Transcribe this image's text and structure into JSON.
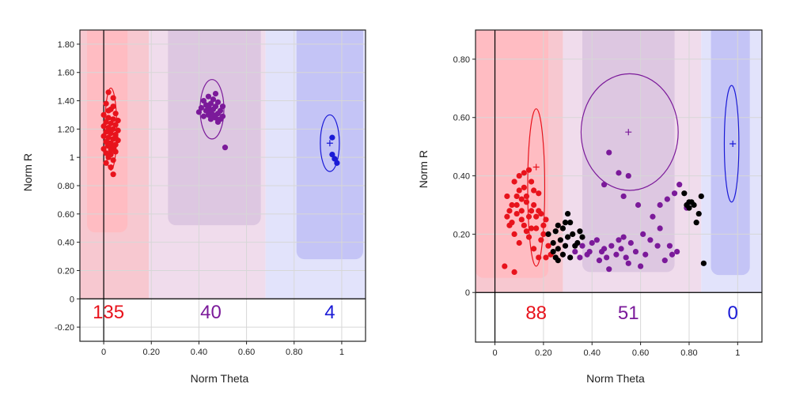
{
  "chart_data": [
    {
      "type": "scatter",
      "xlabel": "Norm Theta",
      "ylabel": "Norm R",
      "xlim": [
        -0.1,
        1.1
      ],
      "ylim": [
        -0.3,
        1.9
      ],
      "x_ticks": [
        0,
        0.2,
        0.4,
        0.6,
        0.8,
        1
      ],
      "x_tick_labels": [
        "0",
        "0.20",
        "0.40",
        "0.60",
        "0.80",
        "1"
      ],
      "y_ticks": [
        -0.2,
        0,
        0.2,
        0.4,
        0.6,
        0.8,
        1,
        1.2,
        1.4,
        1.6,
        1.8
      ],
      "y_tick_labels": [
        "-0.20",
        "0",
        "0.20",
        "0.40",
        "0.60",
        "0.80",
        "1",
        "1.20",
        "1.40",
        "1.60",
        "1.80"
      ],
      "grid": true,
      "count_band_y": [
        -0.3,
        0
      ],
      "regions": [
        {
          "name": "red",
          "color": "#f7c8d0",
          "inner_color": "#ffbcc2",
          "range_x": [
            -0.1,
            0.19
          ],
          "inner": {
            "x": [
              -0.07,
              0.1
            ],
            "y": [
              0.47,
              1.9
            ]
          }
        },
        {
          "name": "purple",
          "color": "#f0dcec",
          "inner_color": "#ddc7e1",
          "range_x": [
            0.19,
            0.68
          ],
          "inner": {
            "x": [
              0.27,
              0.66
            ],
            "y": [
              0.52,
              1.9
            ]
          }
        },
        {
          "name": "blue",
          "color": "#e2e3fb",
          "inner_color": "#c4c4f6",
          "range_x": [
            0.68,
            1.1
          ],
          "inner": {
            "x": [
              0.81,
              1.09
            ],
            "y": [
              0.28,
              1.9
            ]
          }
        }
      ],
      "series": [
        {
          "name": "red",
          "color": "#e8131c",
          "count": "135",
          "centroid": [
            0.02,
            1.18
          ],
          "ellipse": {
            "cx": 0.03,
            "cy": 1.2,
            "rx": 0.025,
            "ry": 0.29
          },
          "points": [
            [
              0.02,
              1.46
            ],
            [
              0.04,
              1.42
            ],
            [
              0.01,
              1.38
            ],
            [
              0.03,
              1.34
            ],
            [
              0.05,
              1.31
            ],
            [
              0.0,
              1.3
            ],
            [
              0.02,
              1.28
            ],
            [
              0.04,
              1.27
            ],
            [
              0.06,
              1.26
            ],
            [
              0.01,
              1.25
            ],
            [
              0.03,
              1.24
            ],
            [
              0.05,
              1.23
            ],
            [
              0.0,
              1.22
            ],
            [
              0.02,
              1.21
            ],
            [
              0.04,
              1.2
            ],
            [
              0.06,
              1.19
            ],
            [
              0.01,
              1.18
            ],
            [
              0.03,
              1.17
            ],
            [
              0.05,
              1.16
            ],
            [
              0.0,
              1.15
            ],
            [
              0.02,
              1.14
            ],
            [
              0.04,
              1.13
            ],
            [
              0.06,
              1.12
            ],
            [
              0.01,
              1.11
            ],
            [
              0.03,
              1.1
            ],
            [
              0.05,
              1.09
            ],
            [
              0.02,
              1.08
            ],
            [
              0.04,
              1.07
            ],
            [
              0.0,
              1.06
            ],
            [
              0.03,
              1.05
            ],
            [
              0.05,
              1.04
            ],
            [
              0.01,
              1.03
            ],
            [
              0.03,
              1.02
            ],
            [
              0.02,
              1.0
            ],
            [
              0.04,
              0.98
            ],
            [
              0.01,
              0.96
            ],
            [
              0.03,
              0.93
            ],
            [
              0.04,
              0.88
            ],
            [
              0.02,
              1.33
            ],
            [
              0.04,
              1.36
            ],
            [
              0.03,
              1.19
            ],
            [
              0.05,
              1.14
            ],
            [
              0.02,
              1.1
            ]
          ]
        },
        {
          "name": "purple",
          "color": "#7b1a9a",
          "count": "40",
          "centroid": [
            0.45,
            1.34
          ],
          "ellipse": {
            "cx": 0.455,
            "cy": 1.34,
            "rx": 0.05,
            "ry": 0.21
          },
          "points": [
            [
              0.47,
              1.45
            ],
            [
              0.44,
              1.43
            ],
            [
              0.46,
              1.41
            ],
            [
              0.42,
              1.4
            ],
            [
              0.48,
              1.39
            ],
            [
              0.45,
              1.38
            ],
            [
              0.43,
              1.37
            ],
            [
              0.5,
              1.36
            ],
            [
              0.47,
              1.36
            ],
            [
              0.41,
              1.35
            ],
            [
              0.44,
              1.35
            ],
            [
              0.46,
              1.34
            ],
            [
              0.49,
              1.33
            ],
            [
              0.43,
              1.33
            ],
            [
              0.45,
              1.32
            ],
            [
              0.4,
              1.32
            ],
            [
              0.48,
              1.31
            ],
            [
              0.44,
              1.3
            ],
            [
              0.46,
              1.3
            ],
            [
              0.42,
              1.29
            ],
            [
              0.5,
              1.29
            ],
            [
              0.47,
              1.28
            ],
            [
              0.45,
              1.27
            ],
            [
              0.49,
              1.27
            ],
            [
              0.48,
              1.25
            ],
            [
              0.51,
              1.07
            ]
          ]
        },
        {
          "name": "blue",
          "color": "#1a1ad6",
          "count": "4",
          "centroid": [
            0.95,
            1.1
          ],
          "ellipse": {
            "cx": 0.95,
            "cy": 1.1,
            "rx": 0.04,
            "ry": 0.2
          },
          "points": [
            [
              0.96,
              1.14
            ],
            [
              0.96,
              1.02
            ],
            [
              0.97,
              0.99
            ],
            [
              0.98,
              0.96
            ]
          ]
        }
      ]
    },
    {
      "type": "scatter",
      "xlabel": "Norm Theta",
      "ylabel": "Norm R",
      "xlim": [
        -0.08,
        1.1
      ],
      "ylim": [
        -0.17,
        0.9
      ],
      "x_ticks": [
        0,
        0.2,
        0.4,
        0.6,
        0.8,
        1
      ],
      "x_tick_labels": [
        "0",
        "0.20",
        "0.40",
        "0.60",
        "0.80",
        "1"
      ],
      "y_ticks": [
        0,
        0.2,
        0.4,
        0.6,
        0.8
      ],
      "y_tick_labels": [
        "0",
        "0.20",
        "0.40",
        "0.60",
        "0.80"
      ],
      "grid": true,
      "count_band_y": [
        -0.17,
        0
      ],
      "regions": [
        {
          "name": "red",
          "color": "#f7c8d0",
          "inner_color": "#ffbcc2",
          "range_x": [
            -0.08,
            0.28
          ],
          "inner": {
            "x": [
              -0.08,
              0.22
            ],
            "y": [
              0.05,
              0.9
            ]
          }
        },
        {
          "name": "purple",
          "color": "#f0dcec",
          "inner_color": "#ddc7e1",
          "range_x": [
            0.28,
            0.85
          ],
          "inner": {
            "x": [
              0.36,
              0.74
            ],
            "y": [
              0.07,
              0.9
            ]
          }
        },
        {
          "name": "blue",
          "color": "#e2e3fb",
          "inner_color": "#c4c4f6",
          "range_x": [
            0.85,
            1.1
          ],
          "inner": {
            "x": [
              0.89,
              1.05
            ],
            "y": [
              0.06,
              0.9
            ]
          }
        }
      ],
      "series": [
        {
          "name": "red",
          "color": "#e8131c",
          "count": "88",
          "centroid": [
            0.17,
            0.43
          ],
          "ellipse": {
            "cx": 0.17,
            "cy": 0.36,
            "rx": 0.035,
            "ry": 0.27
          },
          "points": [
            [
              0.05,
              0.33
            ],
            [
              0.06,
              0.28
            ],
            [
              0.07,
              0.24
            ],
            [
              0.08,
              0.38
            ],
            [
              0.09,
              0.3
            ],
            [
              0.1,
              0.35
            ],
            [
              0.11,
              0.28
            ],
            [
              0.12,
              0.41
            ],
            [
              0.13,
              0.33
            ],
            [
              0.14,
              0.26
            ],
            [
              0.15,
              0.38
            ],
            [
              0.16,
              0.3
            ],
            [
              0.17,
              0.22
            ],
            [
              0.18,
              0.34
            ],
            [
              0.19,
              0.27
            ],
            [
              0.2,
              0.2
            ],
            [
              0.21,
              0.25
            ],
            [
              0.22,
              0.16
            ],
            [
              0.23,
              0.13
            ],
            [
              0.08,
              0.2
            ],
            [
              0.1,
              0.17
            ],
            [
              0.12,
              0.23
            ],
            [
              0.14,
              0.19
            ],
            [
              0.16,
              0.15
            ],
            [
              0.18,
              0.12
            ],
            [
              0.13,
              0.31
            ],
            [
              0.07,
              0.3
            ],
            [
              0.09,
              0.27
            ],
            [
              0.11,
              0.32
            ],
            [
              0.15,
              0.28
            ],
            [
              0.17,
              0.26
            ],
            [
              0.19,
              0.18
            ],
            [
              0.04,
              0.09
            ],
            [
              0.08,
              0.07
            ],
            [
              0.13,
              0.21
            ],
            [
              0.12,
              0.36
            ],
            [
              0.06,
              0.23
            ],
            [
              0.16,
              0.35
            ],
            [
              0.14,
              0.42
            ],
            [
              0.18,
              0.28
            ],
            [
              0.2,
              0.23
            ],
            [
              0.11,
              0.25
            ],
            [
              0.15,
              0.22
            ],
            [
              0.05,
              0.26
            ],
            [
              0.09,
              0.33
            ],
            [
              0.21,
              0.12
            ],
            [
              0.1,
              0.4
            ]
          ]
        },
        {
          "name": "purple",
          "color": "#7b1a9a",
          "count": "51",
          "centroid": [
            0.55,
            0.55
          ],
          "ellipse": {
            "cx": 0.555,
            "cy": 0.55,
            "rx": 0.2,
            "ry": 0.2
          },
          "points": [
            [
              0.47,
              0.48
            ],
            [
              0.51,
              0.41
            ],
            [
              0.55,
              0.4
            ],
            [
              0.45,
              0.37
            ],
            [
              0.53,
              0.33
            ],
            [
              0.59,
              0.3
            ],
            [
              0.65,
              0.26
            ],
            [
              0.68,
              0.3
            ],
            [
              0.71,
              0.32
            ],
            [
              0.74,
              0.34
            ],
            [
              0.76,
              0.37
            ],
            [
              0.79,
              0.29
            ],
            [
              0.61,
              0.2
            ],
            [
              0.64,
              0.18
            ],
            [
              0.68,
              0.22
            ],
            [
              0.72,
              0.16
            ],
            [
              0.75,
              0.14
            ],
            [
              0.33,
              0.14
            ],
            [
              0.36,
              0.16
            ],
            [
              0.39,
              0.14
            ],
            [
              0.42,
              0.18
            ],
            [
              0.44,
              0.14
            ],
            [
              0.46,
              0.12
            ],
            [
              0.48,
              0.16
            ],
            [
              0.5,
              0.13
            ],
            [
              0.52,
              0.15
            ],
            [
              0.54,
              0.12
            ],
            [
              0.56,
              0.17
            ],
            [
              0.58,
              0.14
            ],
            [
              0.4,
              0.17
            ],
            [
              0.43,
              0.11
            ],
            [
              0.47,
              0.08
            ],
            [
              0.51,
              0.18
            ],
            [
              0.55,
              0.1
            ],
            [
              0.6,
              0.09
            ],
            [
              0.62,
              0.13
            ],
            [
              0.67,
              0.16
            ],
            [
              0.7,
              0.11
            ],
            [
              0.73,
              0.13
            ],
            [
              0.35,
              0.12
            ],
            [
              0.38,
              0.13
            ],
            [
              0.53,
              0.19
            ],
            [
              0.45,
              0.15
            ]
          ]
        },
        {
          "name": "blue",
          "color": "#1a1ad6",
          "count": "0",
          "centroid": [
            0.98,
            0.51
          ],
          "ellipse": {
            "cx": 0.975,
            "cy": 0.51,
            "rx": 0.03,
            "ry": 0.2
          },
          "points": []
        },
        {
          "name": "black",
          "color": "#000000",
          "points": [
            [
              0.22,
              0.2
            ],
            [
              0.24,
              0.17
            ],
            [
              0.25,
              0.21
            ],
            [
              0.26,
              0.15
            ],
            [
              0.27,
              0.18
            ],
            [
              0.28,
              0.22
            ],
            [
              0.29,
              0.16
            ],
            [
              0.3,
              0.19
            ],
            [
              0.31,
              0.24
            ],
            [
              0.32,
              0.2
            ],
            [
              0.3,
              0.27
            ],
            [
              0.34,
              0.17
            ],
            [
              0.26,
              0.11
            ],
            [
              0.28,
              0.13
            ],
            [
              0.31,
              0.12
            ],
            [
              0.33,
              0.16
            ],
            [
              0.35,
              0.21
            ],
            [
              0.29,
              0.24
            ],
            [
              0.26,
              0.23
            ],
            [
              0.24,
              0.14
            ],
            [
              0.36,
              0.19
            ],
            [
              0.25,
              0.12
            ],
            [
              0.79,
              0.3
            ],
            [
              0.8,
              0.29
            ],
            [
              0.81,
              0.31
            ],
            [
              0.78,
              0.34
            ],
            [
              0.82,
              0.3
            ],
            [
              0.84,
              0.27
            ],
            [
              0.85,
              0.33
            ],
            [
              0.83,
              0.24
            ],
            [
              0.86,
              0.1
            ],
            [
              0.8,
              0.31
            ]
          ]
        }
      ]
    }
  ]
}
